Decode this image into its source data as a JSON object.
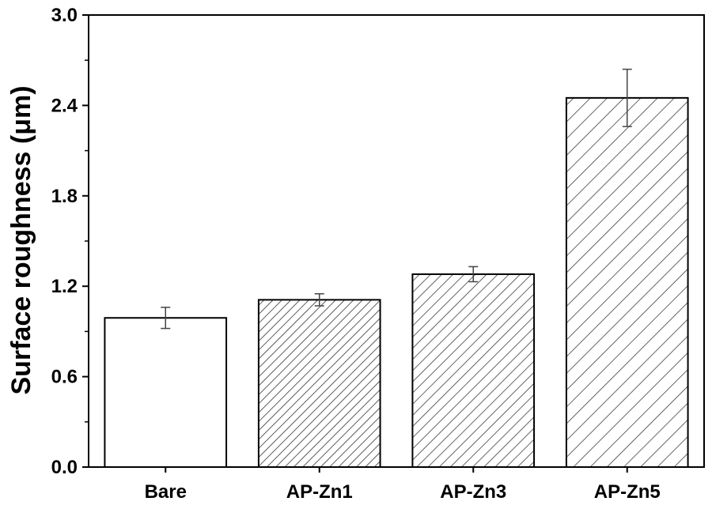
{
  "chart_data": {
    "type": "bar",
    "title": "",
    "xlabel": "",
    "ylabel": "Surface roughness (μm)",
    "ylim": [
      0,
      3.0
    ],
    "yticks": [
      0.0,
      0.6,
      1.2,
      1.8,
      2.4,
      3.0
    ],
    "ytick_labels": [
      "0.0",
      "0.6",
      "1.2",
      "1.8",
      "2.4",
      "3.0"
    ],
    "categories": [
      "Bare",
      "AP-Zn1",
      "AP-Zn3",
      "AP-Zn5"
    ],
    "values": [
      0.99,
      1.11,
      1.28,
      2.45
    ],
    "errors": [
      0.07,
      0.04,
      0.05,
      0.19
    ],
    "patterns": [
      "none",
      "dense-hatch",
      "hatch",
      "wide-hatch"
    ],
    "grid": false,
    "legend": false,
    "colors": {
      "bar_fill": "#ffffff",
      "bar_edge": "#000000",
      "hatch": "#333333",
      "error_bar": "#444444",
      "axis": "#000000"
    }
  }
}
